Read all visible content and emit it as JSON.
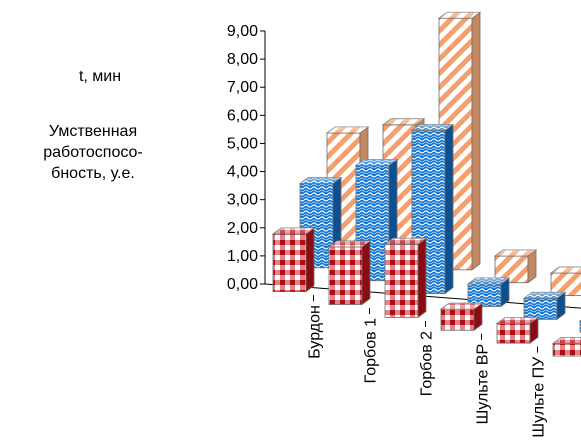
{
  "chart_data": {
    "type": "bar",
    "subtype": "3d-clustered",
    "categories": [
      "Бурдон",
      "Горбов 1",
      "Горбов 2",
      "Шульте ВР",
      "Шульте ПУ",
      ""
    ],
    "y_ticks": [
      "0,00",
      "1,00",
      "2,00",
      "3,00",
      "4,00",
      "5,00",
      "6,00",
      "7,00",
      "8,00",
      "9,00"
    ],
    "ylim": [
      0,
      9
    ],
    "ylabel_time": "t, мин",
    "ylabel_work": "Умственная работоспосо-бность, у.е.",
    "series": [
      {
        "values": [
          2.05,
          2.05,
          2.6,
          0.75,
          0.7,
          0.45
        ],
        "color": "#c8141e",
        "pattern": "plaid"
      },
      {
        "values": [
          3.0,
          4.1,
          5.8,
          0.8,
          0.75,
          0.4
        ],
        "color": "#1a7bd1",
        "pattern": "wave"
      },
      {
        "values": [
          3.95,
          4.7,
          8.95,
          0.95,
          0.8,
          0.5
        ],
        "color": "#f4a070",
        "pattern": "diagonal"
      }
    ],
    "grid": false,
    "legend": "none"
  }
}
